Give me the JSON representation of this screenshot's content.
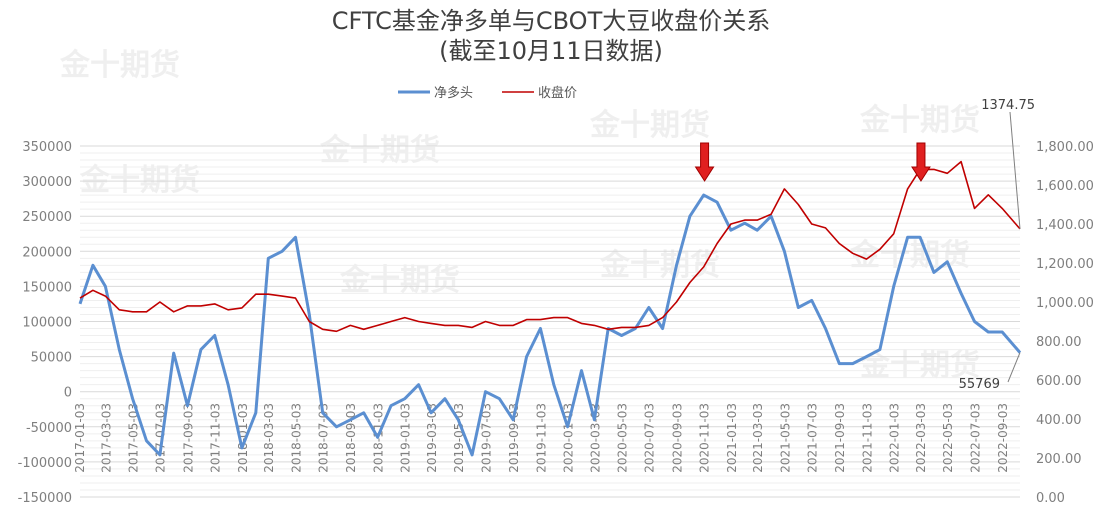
{
  "chart_data": {
    "type": "line",
    "title": "CFTC基金净多单与CBOT大豆收盘价关系",
    "subtitle": "(截至10月11日数据)",
    "watermark": "金十期货",
    "legend": [
      {
        "name": "净多头",
        "color": "#5b8fd1"
      },
      {
        "name": "收盘价",
        "color": "#c00000"
      }
    ],
    "legend_position": "top",
    "grid": true,
    "y_left": {
      "min": -150000,
      "max": 350000,
      "step": 50000,
      "ticks": [
        "350000",
        "300000",
        "250000",
        "200000",
        "150000",
        "100000",
        "50000",
        "0",
        "-50000",
        "-100000",
        "-150000"
      ]
    },
    "y_right": {
      "min": 0,
      "max": 1800,
      "step": 200,
      "ticks": [
        "1,800.00",
        "1,600.00",
        "1,400.00",
        "1,200.00",
        "1,000.00",
        "800.00",
        "600.00",
        "400.00",
        "200.00",
        "0.00"
      ]
    },
    "x_ticks": [
      "2017-01-03",
      "2017-03-03",
      "2017-05-03",
      "2017-07-03",
      "2017-09-03",
      "2017-11-03",
      "2018-01-03",
      "2018-03-03",
      "2018-05-03",
      "2018-07-03",
      "2018-09-03",
      "2018-11-03",
      "2019-01-03",
      "2019-03-03",
      "2019-05-03",
      "2019-07-03",
      "2019-09-03",
      "2019-11-03",
      "2020-01-03",
      "2020-03-03",
      "2020-05-03",
      "2020-07-03",
      "2020-09-03",
      "2020-11-03",
      "2021-01-03",
      "2021-03-03",
      "2021-05-03",
      "2021-07-03",
      "2021-09-03",
      "2021-11-03",
      "2022-01-03",
      "2022-03-03",
      "2022-05-03",
      "2022-07-03",
      "2022-09-03"
    ],
    "x_range": [
      "2017-01-03",
      "2022-10-11"
    ],
    "series": [
      {
        "name": "净多头",
        "axis": "left",
        "color": "#5b8fd1",
        "x": [
          "2017-01-03",
          "2017-02-01",
          "2017-03-01",
          "2017-04-01",
          "2017-05-01",
          "2017-06-01",
          "2017-07-01",
          "2017-08-01",
          "2017-09-01",
          "2017-10-01",
          "2017-11-01",
          "2017-12-01",
          "2018-01-01",
          "2018-02-01",
          "2018-03-01",
          "2018-04-01",
          "2018-05-01",
          "2018-06-01",
          "2018-07-01",
          "2018-08-01",
          "2018-09-01",
          "2018-10-01",
          "2018-11-01",
          "2018-12-01",
          "2019-01-01",
          "2019-02-01",
          "2019-03-01",
          "2019-04-01",
          "2019-05-01",
          "2019-06-01",
          "2019-07-01",
          "2019-08-01",
          "2019-09-01",
          "2019-10-01",
          "2019-11-01",
          "2019-12-01",
          "2020-01-01",
          "2020-02-01",
          "2020-03-01",
          "2020-04-01",
          "2020-05-01",
          "2020-06-01",
          "2020-07-01",
          "2020-08-01",
          "2020-09-01",
          "2020-10-01",
          "2020-11-01",
          "2020-12-01",
          "2021-01-01",
          "2021-02-01",
          "2021-03-01",
          "2021-04-01",
          "2021-05-01",
          "2021-06-01",
          "2021-07-01",
          "2021-08-01",
          "2021-09-01",
          "2021-10-01",
          "2021-11-01",
          "2021-12-01",
          "2022-01-01",
          "2022-02-01",
          "2022-03-01",
          "2022-04-01",
          "2022-05-01",
          "2022-06-01",
          "2022-07-01",
          "2022-08-01",
          "2022-09-01",
          "2022-10-11"
        ],
        "values": [
          125000,
          180000,
          150000,
          60000,
          -10000,
          -70000,
          -90000,
          55000,
          -20000,
          60000,
          80000,
          10000,
          -80000,
          -30000,
          190000,
          200000,
          220000,
          110000,
          -30000,
          -50000,
          -40000,
          -30000,
          -65000,
          -20000,
          -10000,
          10000,
          -30000,
          -10000,
          -40000,
          -90000,
          0,
          -10000,
          -40000,
          50000,
          90000,
          10000,
          -50000,
          30000,
          -40000,
          90000,
          80000,
          90000,
          120000,
          90000,
          180000,
          250000,
          280000,
          270000,
          230000,
          240000,
          230000,
          250000,
          200000,
          120000,
          130000,
          90000,
          40000,
          40000,
          50000,
          60000,
          150000,
          220000,
          220000,
          170000,
          185000,
          140000,
          100000,
          85000,
          85000,
          55769
        ]
      },
      {
        "name": "收盘价",
        "axis": "right",
        "color": "#c00000",
        "x": [
          "2017-01-03",
          "2017-02-01",
          "2017-03-01",
          "2017-04-01",
          "2017-05-01",
          "2017-06-01",
          "2017-07-01",
          "2017-08-01",
          "2017-09-01",
          "2017-10-01",
          "2017-11-01",
          "2017-12-01",
          "2018-01-01",
          "2018-02-01",
          "2018-03-01",
          "2018-04-01",
          "2018-05-01",
          "2018-06-01",
          "2018-07-01",
          "2018-08-01",
          "2018-09-01",
          "2018-10-01",
          "2018-11-01",
          "2018-12-01",
          "2019-01-01",
          "2019-02-01",
          "2019-03-01",
          "2019-04-01",
          "2019-05-01",
          "2019-06-01",
          "2019-07-01",
          "2019-08-01",
          "2019-09-01",
          "2019-10-01",
          "2019-11-01",
          "2019-12-01",
          "2020-01-01",
          "2020-02-01",
          "2020-03-01",
          "2020-04-01",
          "2020-05-01",
          "2020-06-01",
          "2020-07-01",
          "2020-08-01",
          "2020-09-01",
          "2020-10-01",
          "2020-11-01",
          "2020-12-01",
          "2021-01-01",
          "2021-02-01",
          "2021-03-01",
          "2021-04-01",
          "2021-05-01",
          "2021-06-01",
          "2021-07-01",
          "2021-08-01",
          "2021-09-01",
          "2021-10-01",
          "2021-11-01",
          "2021-12-01",
          "2022-01-01",
          "2022-02-01",
          "2022-03-01",
          "2022-04-01",
          "2022-05-01",
          "2022-06-01",
          "2022-07-01",
          "2022-08-01",
          "2022-09-01",
          "2022-10-11"
        ],
        "values": [
          1020,
          1060,
          1030,
          960,
          950,
          950,
          1000,
          950,
          980,
          980,
          990,
          960,
          970,
          1040,
          1040,
          1030,
          1020,
          900,
          860,
          850,
          880,
          860,
          880,
          900,
          920,
          900,
          890,
          880,
          880,
          870,
          900,
          880,
          880,
          910,
          910,
          920,
          920,
          890,
          880,
          860,
          870,
          870,
          880,
          920,
          1000,
          1100,
          1180,
          1300,
          1400,
          1420,
          1420,
          1450,
          1580,
          1500,
          1400,
          1380,
          1300,
          1250,
          1220,
          1270,
          1350,
          1580,
          1680,
          1680,
          1660,
          1720,
          1480,
          1550,
          1480,
          1374.75
        ]
      }
    ],
    "annotations": {
      "last_price": "1374.75",
      "last_net_long": "55769",
      "arrows": [
        "2020-11-03",
        "2022-03-03"
      ]
    }
  }
}
